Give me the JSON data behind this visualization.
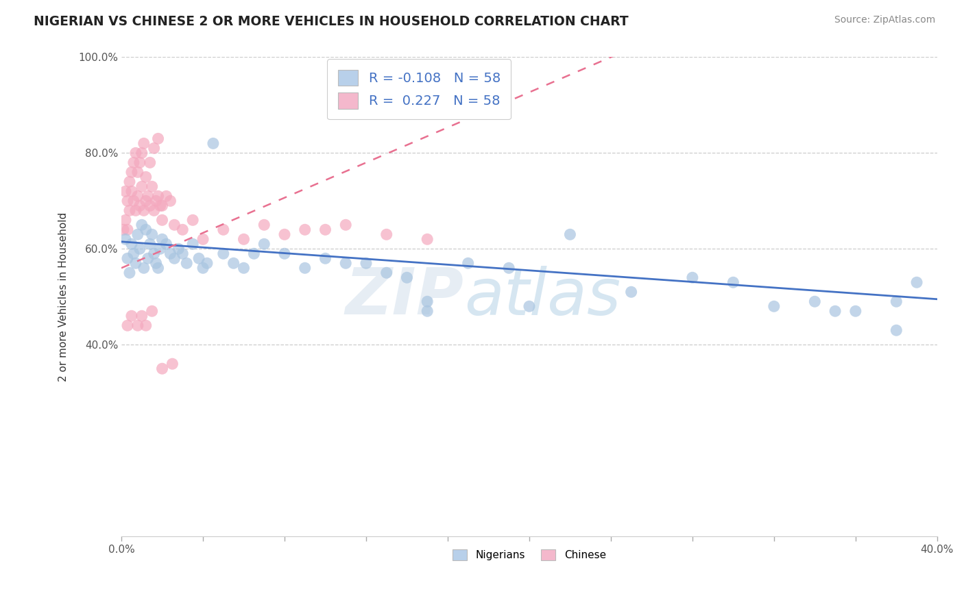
{
  "title": "NIGERIAN VS CHINESE 2 OR MORE VEHICLES IN HOUSEHOLD CORRELATION CHART",
  "source": "Source: ZipAtlas.com",
  "ylabel": "2 or more Vehicles in Household",
  "xlim": [
    0.0,
    0.4
  ],
  "ylim": [
    0.0,
    1.0
  ],
  "r_nigerian": -0.108,
  "r_chinese": 0.227,
  "n_nigerian": 58,
  "n_chinese": 58,
  "blue_scatter": "#a8c4e0",
  "pink_scatter": "#f4a8be",
  "blue_line": "#4472c4",
  "pink_line": "#e87090",
  "legend_blue_patch": "#b8d0ea",
  "legend_pink_patch": "#f4b8cc",
  "nigerian_x": [
    0.002,
    0.003,
    0.004,
    0.005,
    0.006,
    0.007,
    0.008,
    0.009,
    0.01,
    0.011,
    0.012,
    0.013,
    0.014,
    0.015,
    0.016,
    0.017,
    0.018,
    0.019,
    0.02,
    0.022,
    0.024,
    0.026,
    0.028,
    0.03,
    0.032,
    0.035,
    0.038,
    0.04,
    0.042,
    0.045,
    0.05,
    0.055,
    0.06,
    0.065,
    0.07,
    0.08,
    0.09,
    0.1,
    0.11,
    0.12,
    0.13,
    0.14,
    0.15,
    0.17,
    0.19,
    0.22,
    0.25,
    0.28,
    0.3,
    0.32,
    0.34,
    0.36,
    0.38,
    0.39,
    0.15,
    0.2,
    0.35,
    0.38
  ],
  "nigerian_y": [
    0.62,
    0.58,
    0.55,
    0.61,
    0.59,
    0.57,
    0.63,
    0.6,
    0.65,
    0.56,
    0.64,
    0.58,
    0.61,
    0.63,
    0.59,
    0.57,
    0.56,
    0.6,
    0.62,
    0.61,
    0.59,
    0.58,
    0.6,
    0.59,
    0.57,
    0.61,
    0.58,
    0.56,
    0.57,
    0.82,
    0.59,
    0.57,
    0.56,
    0.59,
    0.61,
    0.59,
    0.56,
    0.58,
    0.57,
    0.57,
    0.55,
    0.54,
    0.47,
    0.57,
    0.56,
    0.63,
    0.51,
    0.54,
    0.53,
    0.48,
    0.49,
    0.47,
    0.49,
    0.53,
    0.49,
    0.48,
    0.47,
    0.43
  ],
  "chinese_x": [
    0.001,
    0.002,
    0.003,
    0.004,
    0.005,
    0.006,
    0.007,
    0.008,
    0.009,
    0.01,
    0.011,
    0.012,
    0.013,
    0.014,
    0.015,
    0.016,
    0.017,
    0.018,
    0.019,
    0.02,
    0.002,
    0.003,
    0.004,
    0.005,
    0.006,
    0.007,
    0.008,
    0.009,
    0.01,
    0.011,
    0.012,
    0.014,
    0.016,
    0.018,
    0.02,
    0.022,
    0.024,
    0.026,
    0.03,
    0.035,
    0.04,
    0.05,
    0.06,
    0.07,
    0.08,
    0.09,
    0.1,
    0.11,
    0.13,
    0.15,
    0.003,
    0.005,
    0.008,
    0.01,
    0.012,
    0.015,
    0.02,
    0.025
  ],
  "chinese_y": [
    0.64,
    0.66,
    0.64,
    0.68,
    0.72,
    0.7,
    0.68,
    0.71,
    0.69,
    0.73,
    0.68,
    0.7,
    0.71,
    0.69,
    0.73,
    0.68,
    0.7,
    0.71,
    0.69,
    0.66,
    0.72,
    0.7,
    0.74,
    0.76,
    0.78,
    0.8,
    0.76,
    0.78,
    0.8,
    0.82,
    0.75,
    0.78,
    0.81,
    0.83,
    0.69,
    0.71,
    0.7,
    0.65,
    0.64,
    0.66,
    0.62,
    0.64,
    0.62,
    0.65,
    0.63,
    0.64,
    0.64,
    0.65,
    0.63,
    0.62,
    0.44,
    0.46,
    0.44,
    0.46,
    0.44,
    0.47,
    0.35,
    0.36
  ]
}
